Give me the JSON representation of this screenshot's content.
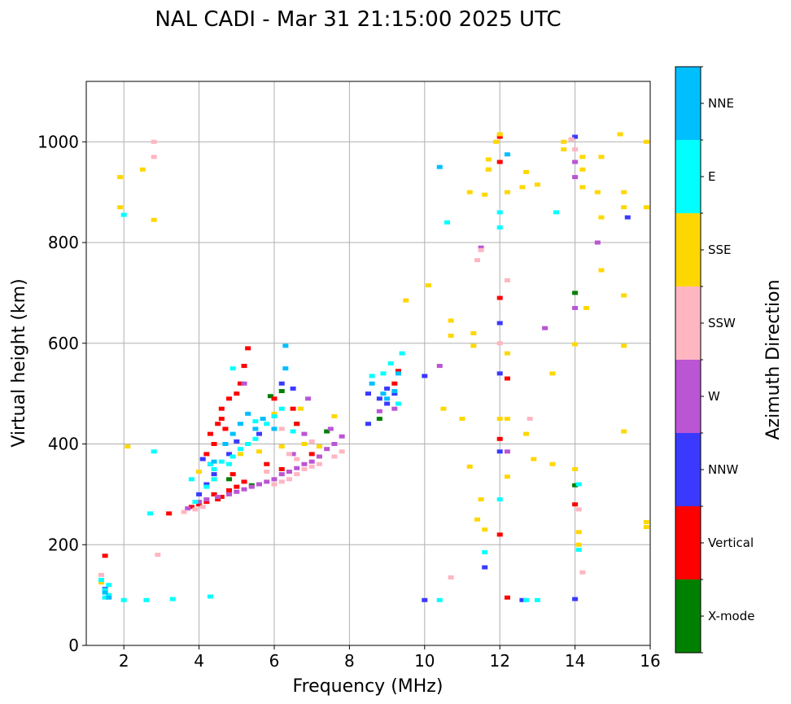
{
  "chart_data": {
    "type": "scatter",
    "title": "NAL CADI - Mar 31 21:15:00 2025 UTC",
    "xlabel": "Frequency (MHz)",
    "ylabel": "Virtual height (km)",
    "xlim": [
      1,
      16
    ],
    "ylim": [
      0,
      1120
    ],
    "xticks": [
      "2",
      "4",
      "6",
      "8",
      "10",
      "12",
      "14",
      "16"
    ],
    "xtick_values": [
      2,
      4,
      6,
      8,
      10,
      12,
      14,
      16
    ],
    "yticks": [
      "0",
      "200",
      "400",
      "600",
      "800",
      "1000"
    ],
    "ytick_values": [
      0,
      200,
      400,
      600,
      800,
      1000
    ],
    "grid": true,
    "colorbar": {
      "label": "Azimuth Direction",
      "categories": [
        {
          "label": "X-mode",
          "color": "#008000"
        },
        {
          "label": "Vertical",
          "color": "#ff0000"
        },
        {
          "label": "NNW",
          "color": "#3a3aff"
        },
        {
          "label": "W",
          "color": "#ba55d3"
        },
        {
          "label": "SSW",
          "color": "#ffb6c1"
        },
        {
          "label": "SSE",
          "color": "#ffd700"
        },
        {
          "label": "E",
          "color": "#00ffff"
        },
        {
          "label": "NNE",
          "color": "#00bfff"
        }
      ]
    },
    "series": [
      {
        "name": "X-mode",
        "points": [
          [
            5.9,
            495
          ],
          [
            6.2,
            505
          ],
          [
            6.6,
            440
          ],
          [
            4.8,
            330
          ],
          [
            5.4,
            318
          ],
          [
            7.4,
            425
          ],
          [
            8.8,
            450
          ],
          [
            14.0,
            700
          ],
          [
            14.0,
            318
          ],
          [
            4.4,
            300
          ]
        ]
      },
      {
        "name": "Vertical",
        "points": [
          [
            3.2,
            262
          ],
          [
            3.8,
            275
          ],
          [
            4.0,
            280
          ],
          [
            4.2,
            285
          ],
          [
            4.4,
            300
          ],
          [
            4.5,
            290
          ],
          [
            4.6,
            295
          ],
          [
            4.8,
            308
          ],
          [
            5.0,
            315
          ],
          [
            5.2,
            325
          ],
          [
            4.3,
            420
          ],
          [
            4.5,
            440
          ],
          [
            4.6,
            450
          ],
          [
            4.7,
            430
          ],
          [
            4.6,
            470
          ],
          [
            4.8,
            490
          ],
          [
            5.0,
            500
          ],
          [
            5.1,
            520
          ],
          [
            5.2,
            555
          ],
          [
            5.3,
            590
          ],
          [
            4.4,
            400
          ],
          [
            4.2,
            380
          ],
          [
            6.0,
            490
          ],
          [
            6.5,
            470
          ],
          [
            6.6,
            440
          ],
          [
            7.0,
            380
          ],
          [
            6.2,
            350
          ],
          [
            5.8,
            360
          ],
          [
            4.9,
            340
          ],
          [
            1.5,
            178
          ],
          [
            9.3,
            545
          ],
          [
            9.2,
            520
          ],
          [
            12.0,
            410
          ],
          [
            12.0,
            220
          ],
          [
            12.2,
            530
          ],
          [
            12.2,
            95
          ],
          [
            14.0,
            280
          ],
          [
            12.0,
            690
          ],
          [
            12.0,
            1010
          ],
          [
            12.0,
            960
          ]
        ]
      },
      {
        "name": "NNW",
        "points": [
          [
            4.1,
            370
          ],
          [
            4.3,
            360
          ],
          [
            4.4,
            340
          ],
          [
            4.0,
            300
          ],
          [
            4.2,
            320
          ],
          [
            4.8,
            380
          ],
          [
            5.0,
            405
          ],
          [
            5.6,
            420
          ],
          [
            6.2,
            520
          ],
          [
            6.5,
            510
          ],
          [
            8.5,
            500
          ],
          [
            8.5,
            440
          ],
          [
            8.8,
            490
          ],
          [
            9.0,
            480
          ],
          [
            9.2,
            500
          ],
          [
            9.0,
            510
          ],
          [
            10.0,
            535
          ],
          [
            10.0,
            90
          ],
          [
            11.6,
            155
          ],
          [
            12.0,
            540
          ],
          [
            12.0,
            640
          ],
          [
            12.6,
            90
          ],
          [
            14.0,
            92
          ],
          [
            14.0,
            1010
          ],
          [
            15.4,
            850
          ],
          [
            12.0,
            385
          ],
          [
            1.5,
            112
          ]
        ]
      },
      {
        "name": "W",
        "points": [
          [
            3.7,
            272
          ],
          [
            4.0,
            285
          ],
          [
            4.2,
            290
          ],
          [
            4.5,
            295
          ],
          [
            4.8,
            300
          ],
          [
            5.0,
            305
          ],
          [
            5.2,
            310
          ],
          [
            5.4,
            315
          ],
          [
            5.6,
            320
          ],
          [
            5.8,
            325
          ],
          [
            6.0,
            330
          ],
          [
            6.2,
            340
          ],
          [
            6.4,
            345
          ],
          [
            6.6,
            352
          ],
          [
            6.8,
            360
          ],
          [
            7.0,
            365
          ],
          [
            7.2,
            375
          ],
          [
            7.4,
            390
          ],
          [
            7.6,
            400
          ],
          [
            7.8,
            415
          ],
          [
            7.5,
            430
          ],
          [
            6.8,
            420
          ],
          [
            6.5,
            380
          ],
          [
            6.9,
            490
          ],
          [
            5.2,
            520
          ],
          [
            8.8,
            465
          ],
          [
            9.2,
            470
          ],
          [
            13.2,
            630
          ],
          [
            14.0,
            670
          ],
          [
            14.6,
            800
          ],
          [
            14.0,
            930
          ],
          [
            14.0,
            960
          ],
          [
            11.5,
            790
          ],
          [
            12.2,
            385
          ],
          [
            10.4,
            555
          ]
        ]
      },
      {
        "name": "SSW",
        "points": [
          [
            3.6,
            265
          ],
          [
            3.9,
            270
          ],
          [
            4.1,
            275
          ],
          [
            6.0,
            320
          ],
          [
            6.2,
            325
          ],
          [
            6.4,
            330
          ],
          [
            6.6,
            340
          ],
          [
            6.8,
            350
          ],
          [
            7.0,
            355
          ],
          [
            7.2,
            360
          ],
          [
            7.6,
            375
          ],
          [
            7.8,
            385
          ],
          [
            6.2,
            430
          ],
          [
            6.4,
            380
          ],
          [
            6.6,
            370
          ],
          [
            5.8,
            345
          ],
          [
            7.0,
            405
          ],
          [
            2.8,
            970
          ],
          [
            2.8,
            1000
          ],
          [
            2.9,
            180
          ],
          [
            10.7,
            135
          ],
          [
            11.4,
            765
          ],
          [
            11.5,
            785
          ],
          [
            12.2,
            725
          ],
          [
            12.0,
            600
          ],
          [
            12.8,
            450
          ],
          [
            14.1,
            270
          ],
          [
            14.2,
            145
          ],
          [
            13.9,
            1005
          ],
          [
            14.0,
            985
          ],
          [
            1.4,
            140
          ]
        ]
      },
      {
        "name": "SSE",
        "points": [
          [
            4.0,
            345
          ],
          [
            4.4,
            330
          ],
          [
            5.1,
            380
          ],
          [
            5.6,
            385
          ],
          [
            6.2,
            395
          ],
          [
            6.8,
            400
          ],
          [
            7.2,
            395
          ],
          [
            6.0,
            460
          ],
          [
            6.7,
            470
          ],
          [
            7.6,
            455
          ],
          [
            2.1,
            395
          ],
          [
            1.9,
            930
          ],
          [
            1.9,
            870
          ],
          [
            2.5,
            945
          ],
          [
            2.8,
            845
          ],
          [
            10.1,
            715
          ],
          [
            10.5,
            470
          ],
          [
            10.7,
            645
          ],
          [
            10.7,
            615
          ],
          [
            11.0,
            450
          ],
          [
            11.2,
            355
          ],
          [
            11.3,
            595
          ],
          [
            11.3,
            620
          ],
          [
            11.4,
            250
          ],
          [
            11.5,
            290
          ],
          [
            11.6,
            230
          ],
          [
            11.6,
            895
          ],
          [
            11.2,
            900
          ],
          [
            11.7,
            945
          ],
          [
            11.7,
            965
          ],
          [
            11.9,
            1000
          ],
          [
            12.0,
            1015
          ],
          [
            12.2,
            580
          ],
          [
            12.2,
            900
          ],
          [
            12.2,
            335
          ],
          [
            12.2,
            450
          ],
          [
            12.6,
            910
          ],
          [
            12.7,
            420
          ],
          [
            12.7,
            940
          ],
          [
            12.9,
            370
          ],
          [
            13.0,
            915
          ],
          [
            13.4,
            540
          ],
          [
            13.4,
            360
          ],
          [
            13.7,
            1000
          ],
          [
            13.7,
            985
          ],
          [
            14.0,
            350
          ],
          [
            14.1,
            200
          ],
          [
            14.1,
            225
          ],
          [
            14.2,
            910
          ],
          [
            14.2,
            945
          ],
          [
            14.2,
            970
          ],
          [
            14.6,
            900
          ],
          [
            14.7,
            850
          ],
          [
            14.7,
            970
          ],
          [
            14.7,
            745
          ],
          [
            15.2,
            1015
          ],
          [
            15.3,
            900
          ],
          [
            15.3,
            870
          ],
          [
            15.3,
            695
          ],
          [
            15.3,
            595
          ],
          [
            15.3,
            425
          ],
          [
            15.9,
            1000
          ],
          [
            15.9,
            870
          ],
          [
            15.9,
            245
          ],
          [
            15.9,
            235
          ],
          [
            14.3,
            670
          ],
          [
            14.0,
            598
          ],
          [
            12.0,
            450
          ],
          [
            11.7,
            945
          ],
          [
            9.5,
            685
          ],
          [
            1.4,
            125
          ]
        ]
      },
      {
        "name": "E",
        "points": [
          [
            3.8,
            330
          ],
          [
            4.3,
            360
          ],
          [
            4.4,
            350
          ],
          [
            4.6,
            365
          ],
          [
            4.8,
            360
          ],
          [
            4.9,
            375
          ],
          [
            5.1,
            390
          ],
          [
            5.3,
            400
          ],
          [
            5.5,
            410
          ],
          [
            5.8,
            440
          ],
          [
            6.0,
            455
          ],
          [
            6.2,
            470
          ],
          [
            6.5,
            425
          ],
          [
            4.9,
            550
          ],
          [
            5.5,
            445
          ],
          [
            4.4,
            330
          ],
          [
            4.2,
            315
          ],
          [
            3.9,
            285
          ],
          [
            2.0,
            855
          ],
          [
            2.0,
            90
          ],
          [
            2.8,
            385
          ],
          [
            2.7,
            262
          ],
          [
            3.3,
            92
          ],
          [
            4.3,
            97
          ],
          [
            8.6,
            535
          ],
          [
            8.9,
            540
          ],
          [
            9.1,
            560
          ],
          [
            9.4,
            580
          ],
          [
            9.3,
            480
          ],
          [
            10.4,
            90
          ],
          [
            10.6,
            840
          ],
          [
            11.6,
            185
          ],
          [
            12.0,
            830
          ],
          [
            12.0,
            860
          ],
          [
            12.0,
            290
          ],
          [
            12.7,
            90
          ],
          [
            13.0,
            90
          ],
          [
            13.5,
            860
          ],
          [
            14.1,
            320
          ],
          [
            14.1,
            190
          ],
          [
            1.5,
            95
          ],
          [
            1.6,
            100
          ],
          [
            1.5,
            110
          ],
          [
            1.6,
            120
          ],
          [
            1.4,
            130
          ],
          [
            2.6,
            90
          ]
        ]
      },
      {
        "name": "NNE",
        "points": [
          [
            4.4,
            365
          ],
          [
            4.7,
            400
          ],
          [
            4.9,
            420
          ],
          [
            5.1,
            440
          ],
          [
            5.3,
            460
          ],
          [
            5.5,
            430
          ],
          [
            5.7,
            450
          ],
          [
            6.0,
            430
          ],
          [
            6.3,
            595
          ],
          [
            6.3,
            550
          ],
          [
            8.6,
            520
          ],
          [
            8.9,
            500
          ],
          [
            9.0,
            490
          ],
          [
            9.2,
            505
          ],
          [
            9.3,
            540
          ],
          [
            10.4,
            950
          ],
          [
            12.2,
            975
          ],
          [
            1.5,
            105
          ],
          [
            1.6,
            95
          ]
        ]
      }
    ]
  }
}
